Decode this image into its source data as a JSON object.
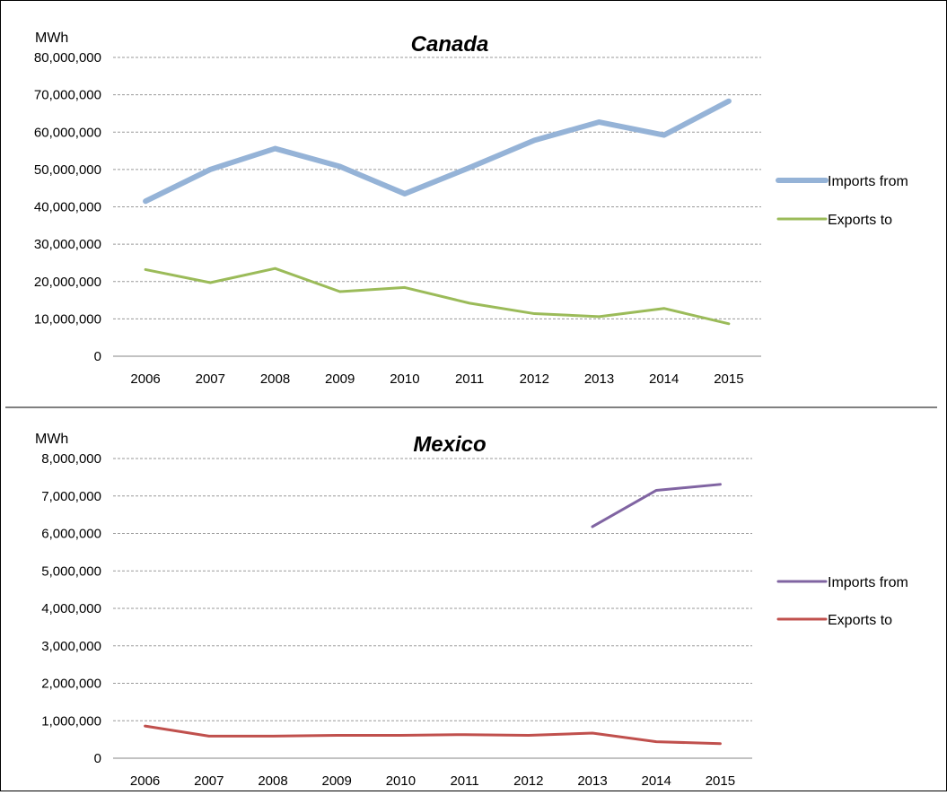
{
  "chart_data": [
    {
      "type": "line",
      "title": "Canada",
      "unit_label": "MWh",
      "categories": [
        "2006",
        "2007",
        "2008",
        "2009",
        "2010",
        "2011",
        "2012",
        "2013",
        "2014",
        "2015"
      ],
      "yticks": [
        "0",
        "10,000,000",
        "20,000,000",
        "30,000,000",
        "40,000,000",
        "50,000,000",
        "60,000,000",
        "70,000,000",
        "80,000,000"
      ],
      "ylim": [
        0,
        80000000
      ],
      "grid": true,
      "legend_position": "right",
      "series": [
        {
          "name": "Imports from",
          "color": "#95b3d7",
          "width": 6,
          "values": [
            41500000,
            50000000,
            55600000,
            50800000,
            43500000,
            50500000,
            57800000,
            62700000,
            59200000,
            68300000
          ]
        },
        {
          "name": "Exports to",
          "color": "#9bbb59",
          "width": 3,
          "values": [
            23200000,
            19700000,
            23500000,
            17300000,
            18400000,
            14200000,
            11400000,
            10600000,
            12800000,
            8700000
          ]
        }
      ]
    },
    {
      "type": "line",
      "title": "Mexico",
      "unit_label": "MWh",
      "categories": [
        "2006",
        "2007",
        "2008",
        "2009",
        "2010",
        "2011",
        "2012",
        "2013",
        "2014",
        "2015"
      ],
      "yticks": [
        "0",
        "1,000,000",
        "2,000,000",
        "3,000,000",
        "4,000,000",
        "5,000,000",
        "6,000,000",
        "7,000,000",
        "8,000,000"
      ],
      "ylim": [
        0,
        8000000
      ],
      "grid": true,
      "legend_position": "right",
      "series": [
        {
          "name": "Imports from",
          "color": "#8064a2",
          "width": 3,
          "values": [
            null,
            null,
            null,
            null,
            null,
            null,
            null,
            6180000,
            7150000,
            7310000
          ]
        },
        {
          "name": "Exports to",
          "color": "#c0504d",
          "width": 3,
          "values": [
            860000,
            590000,
            590000,
            610000,
            610000,
            630000,
            610000,
            670000,
            440000,
            390000
          ]
        }
      ]
    }
  ]
}
